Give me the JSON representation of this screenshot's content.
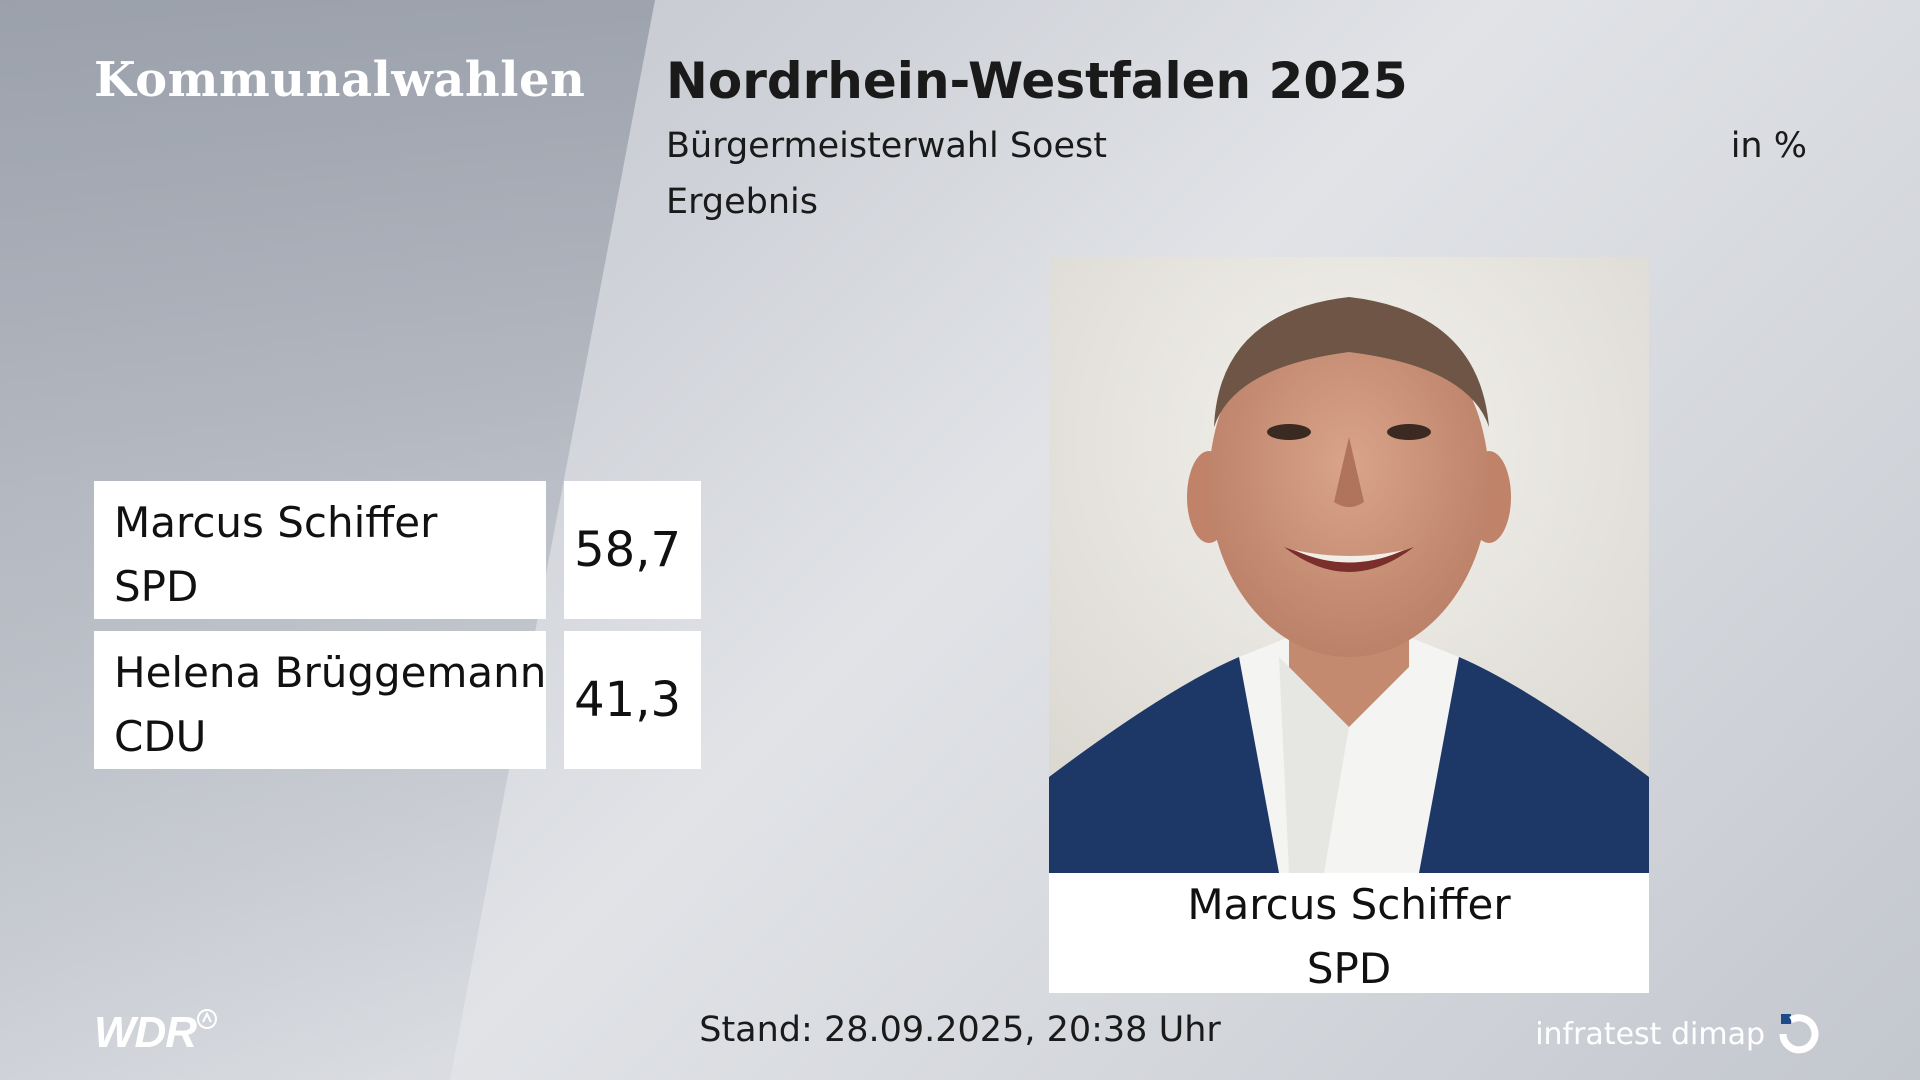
{
  "header": {
    "program": "Kommunalwahlen",
    "title": "Nordrhein-Westfalen 2025",
    "subtitle": "Bürgermeisterwahl Soest",
    "subtitle2": "Ergebnis",
    "unit": "in %"
  },
  "results": [
    {
      "name": "Marcus Schiffer",
      "party": "SPD",
      "value": "58,7"
    },
    {
      "name": "Helena Brüggemann",
      "party": "CDU",
      "value": "41,3"
    }
  ],
  "winner": {
    "name": "Marcus Schiffer",
    "party": "SPD",
    "photo": "portrait-photo"
  },
  "footer": {
    "stand": "Stand: 28.09.2025, 20:38 Uhr",
    "broadcaster_logo": "WDR",
    "pollster_logo": "infratest dimap"
  },
  "colors": {
    "wdr_blue": "#1f4a8a",
    "suit": "#1d3766"
  }
}
